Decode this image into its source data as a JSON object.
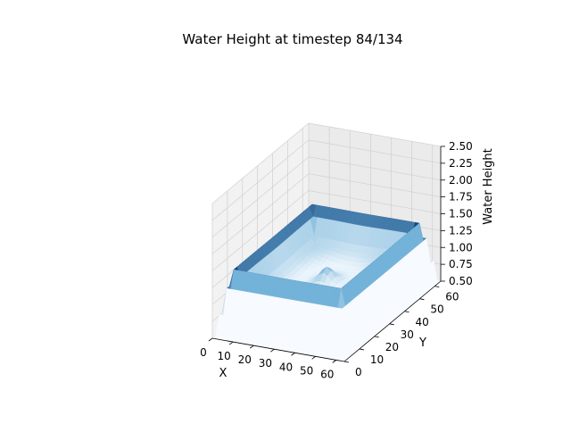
{
  "chart_data": {
    "type": "surface3d",
    "title": "Water Height at timestep 84/134",
    "xlabel": "X",
    "ylabel": "Y",
    "zlabel": "Water Height",
    "xlim": [
      0,
      64
    ],
    "ylim": [
      0,
      64
    ],
    "zlim": [
      0.5,
      2.5
    ],
    "xticks": [
      "0",
      "10",
      "20",
      "30",
      "40",
      "50",
      "60"
    ],
    "yticks": [
      "0",
      "10",
      "20",
      "30",
      "40",
      "50",
      "60"
    ],
    "zticks": [
      "0.50",
      "0.75",
      "1.00",
      "1.25",
      "1.50",
      "1.75",
      "2.00",
      "2.25",
      "2.50"
    ],
    "colormap": "Blues",
    "grid": true,
    "surface": {
      "grid_size": 64,
      "base_level": 1.0,
      "rim_peak": 1.45,
      "center_bump": 0.15,
      "edge_level": 0.5
    }
  },
  "colors": {
    "pane_left": "#f2f2f2",
    "pane_right": "#ebebeb",
    "pane_floor": "#f7f7f7",
    "grid": "#d3d3d3",
    "cmap_low": "#f7fbff",
    "cmap_high": "#08306b"
  }
}
